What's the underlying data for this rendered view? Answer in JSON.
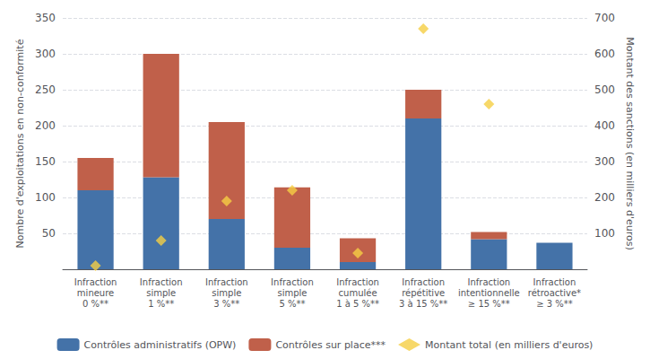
{
  "chart_data": {
    "type": "bar",
    "categories": [
      "Infraction\nmineure\n0 %**",
      "Infraction\nsimple\n1 %**",
      "Infraction\nsimple\n3 %**",
      "Infraction\nsimple\n5 %**",
      "Infraction\ncumulée\n1 à 5 %**",
      "Infraction\nrépétitive\n3 à 15 %**",
      "Infraction\nintentionnelle\n≥ 15 %**",
      "Infraction\nrétroactive*\n≥ 3 %**"
    ],
    "series": [
      {
        "name": "Contrôles administratifs (OPW)",
        "type": "bar",
        "color": "#4472a8",
        "values": [
          110,
          128,
          70,
          30,
          10,
          210,
          42,
          37
        ]
      },
      {
        "name": "Contrôles sur place***",
        "type": "bar",
        "color": "#c0604a",
        "values": [
          45,
          172,
          135,
          84,
          33,
          40,
          10,
          0
        ]
      },
      {
        "name": "Montant total (en milliers d'euros)",
        "type": "scatter",
        "marker": "diamond",
        "color": "#f5ce43",
        "axis": "y2",
        "values": [
          10,
          80,
          190,
          220,
          45,
          670,
          460,
          null
        ]
      }
    ],
    "stacked": true,
    "ylabel": "Nombre d'exploitations en non-conformité",
    "y2label": "Montant des sanctions (en milliers d'euros)",
    "ylim": [
      0,
      350
    ],
    "yticks": [
      50,
      100,
      150,
      200,
      250,
      300,
      350
    ],
    "y2lim": [
      0,
      700
    ],
    "y2ticks": [
      100,
      200,
      300,
      400,
      500,
      600,
      700
    ],
    "grid": true,
    "legend": "bottom"
  }
}
